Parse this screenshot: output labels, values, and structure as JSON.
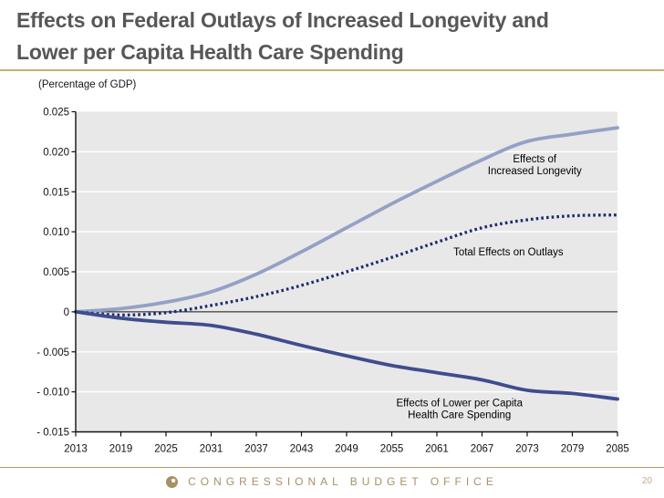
{
  "slide": {
    "title_line1": "Effects on Federal Outlays of Increased Longevity and",
    "title_line2": "Lower per Capita Health Care Spending",
    "units_label": "(Percentage of GDP)",
    "footer": {
      "org": "CONGRESSIONAL BUDGET OFFICE",
      "logo": "cbo-logo-icon",
      "page": "20"
    }
  },
  "colors": {
    "title_gray": "#575757",
    "rule_tan": "#c9ae74",
    "footer_rule_tan": "#b29767",
    "footer_text_tan": "#a89065",
    "page_number_tan": "#c2aa80"
  },
  "chart_data": {
    "type": "line",
    "title": "Effects on Federal Outlays of Increased Longevity and Lower per Capita Health Care Spending",
    "ylabel": "(Percentage of GDP)",
    "x": [
      2013,
      2019,
      2025,
      2031,
      2037,
      2043,
      2049,
      2055,
      2061,
      2067,
      2073,
      2079,
      2085
    ],
    "series": [
      {
        "name": "Effects of Increased Longevity",
        "line_style": "solid",
        "color": "#95a0c6",
        "width": 3.8,
        "values": [
          0.0,
          0.0004,
          0.0012,
          0.0025,
          0.0047,
          0.0075,
          0.0105,
          0.0135,
          0.0163,
          0.019,
          0.0213,
          0.0222,
          0.023
        ]
      },
      {
        "name": "Total Effects on Outlays",
        "line_style": "dotted",
        "color": "#1c2a6e",
        "width": 3.3,
        "values": [
          0.0,
          -0.0004,
          -0.0001,
          0.0008,
          0.0019,
          0.0033,
          0.005,
          0.0068,
          0.0087,
          0.0105,
          0.0115,
          0.012,
          0.0121
        ]
      },
      {
        "name": "Effects of Lower per Capita Health Care Spending",
        "line_style": "solid",
        "color": "#3f4d8e",
        "width": 3.8,
        "values": [
          0.0,
          -0.0008,
          -0.0013,
          -0.0017,
          -0.0028,
          -0.0042,
          -0.0055,
          -0.0067,
          -0.0076,
          -0.0085,
          -0.0098,
          -0.0102,
          -0.0109
        ]
      }
    ],
    "ylim": [
      -0.015,
      0.025
    ],
    "xlim": [
      2013,
      2085
    ],
    "ytick_values": [
      0.025,
      0.02,
      0.015,
      0.01,
      0.005,
      0,
      -0.005,
      -0.01,
      -0.015
    ],
    "ytick_labels": [
      "0.025",
      "0.020",
      "0.015",
      "0.010",
      "0.005",
      "0",
      "- 0.005",
      "- 0.010",
      "- 0.015"
    ],
    "xtick_labels": [
      "2013",
      "2019",
      "2025",
      "2031",
      "2037",
      "2043",
      "2049",
      "2055",
      "2061",
      "2067",
      "2073",
      "2079",
      "2085"
    ],
    "grid": "horizontal-white-on-gray",
    "grid_color": "#ffffff",
    "plot_bg": "#e8e8e8",
    "axis_color": "#111111",
    "legend_position": "in-plot-annotations",
    "annotations": [
      {
        "x": 2074,
        "y": 0.0184,
        "lines": [
          "Effects of",
          "Increased Longevity"
        ]
      },
      {
        "x": 2070.5,
        "y": 0.0075,
        "lines": [
          "Total Effects on Outlays"
        ]
      },
      {
        "x": 2064,
        "y": -0.0121,
        "lines": [
          "Effects of Lower per Capita",
          "Health Care Spending"
        ]
      }
    ]
  }
}
